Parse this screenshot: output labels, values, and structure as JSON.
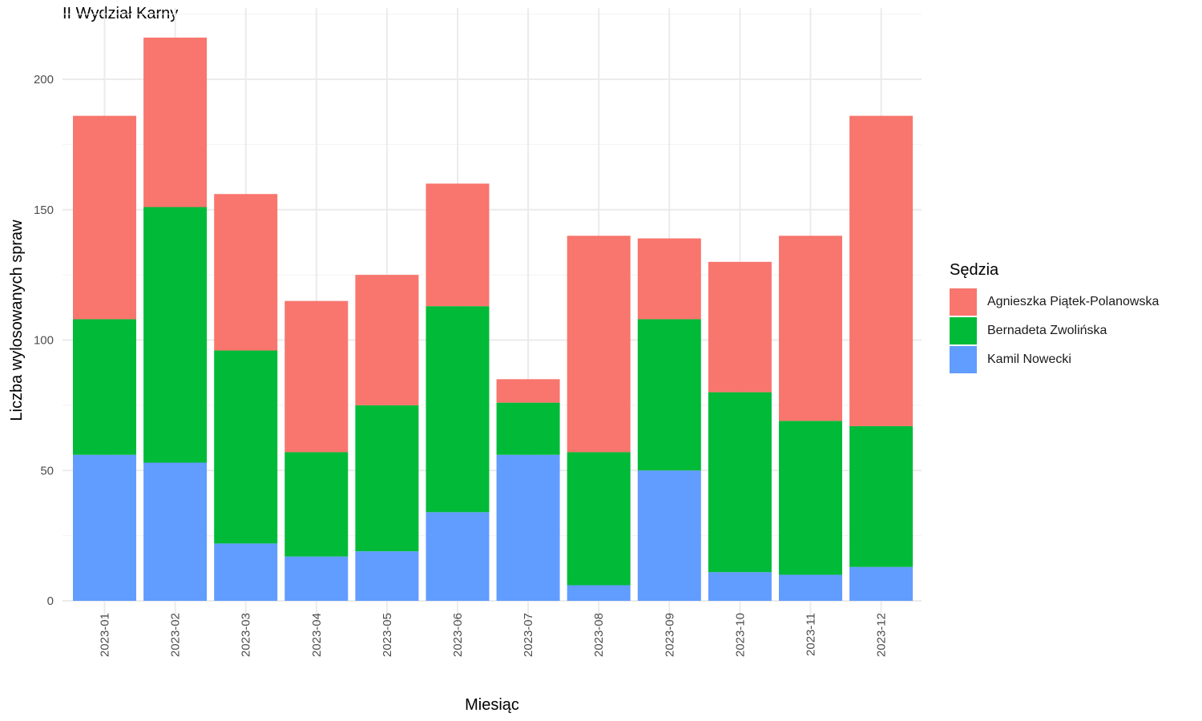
{
  "title": "II Wydział Karny",
  "chart_data": {
    "type": "bar",
    "stacked": true,
    "title": "II Wydział Karny",
    "xlabel": "Miesiąc",
    "ylabel": "Liczba wylosowanych spraw",
    "ylim": [
      0,
      225
    ],
    "yticks": [
      0,
      50,
      100,
      150,
      200
    ],
    "grid": true,
    "legend_position": "right",
    "legend_title": "Sędzia",
    "categories": [
      "2023-01",
      "2023-02",
      "2023-03",
      "2023-04",
      "2023-05",
      "2023-06",
      "2023-07",
      "2023-08",
      "2023-09",
      "2023-10",
      "2023-11",
      "2023-12"
    ],
    "series": [
      {
        "name": "Kamil Nowecki",
        "color": "#619CFF",
        "values": [
          56,
          53,
          22,
          17,
          19,
          34,
          56,
          6,
          50,
          11,
          10,
          13
        ]
      },
      {
        "name": "Bernadeta Zwolińska",
        "color": "#00BA38",
        "values": [
          52,
          98,
          74,
          40,
          56,
          79,
          20,
          51,
          58,
          69,
          59,
          54
        ]
      },
      {
        "name": "Agnieszka Piątek-Polanowska",
        "color": "#F8766D",
        "values": [
          78,
          65,
          60,
          58,
          50,
          47,
          9,
          83,
          31,
          50,
          71,
          119
        ]
      }
    ]
  }
}
